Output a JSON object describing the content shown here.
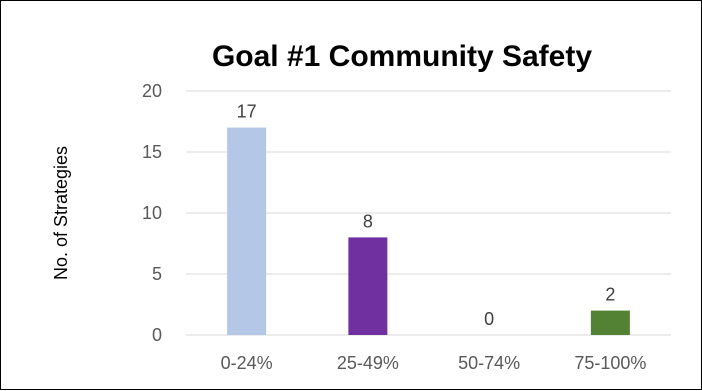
{
  "chart_data": {
    "type": "bar",
    "title": "Goal #1 Community Safety",
    "xlabel": "",
    "ylabel": "No. of Strategies",
    "categories": [
      "0-24%",
      "25-49%",
      "50-74%",
      "75-100%"
    ],
    "values": [
      17,
      8,
      0,
      2
    ],
    "bar_colors": [
      "#b4c7e7",
      "#7030a0",
      "#7030a0",
      "#548235"
    ],
    "ylim": [
      0,
      20
    ],
    "yticks": [
      0,
      5,
      10,
      15,
      20
    ],
    "grid": true,
    "legend": "none"
  }
}
